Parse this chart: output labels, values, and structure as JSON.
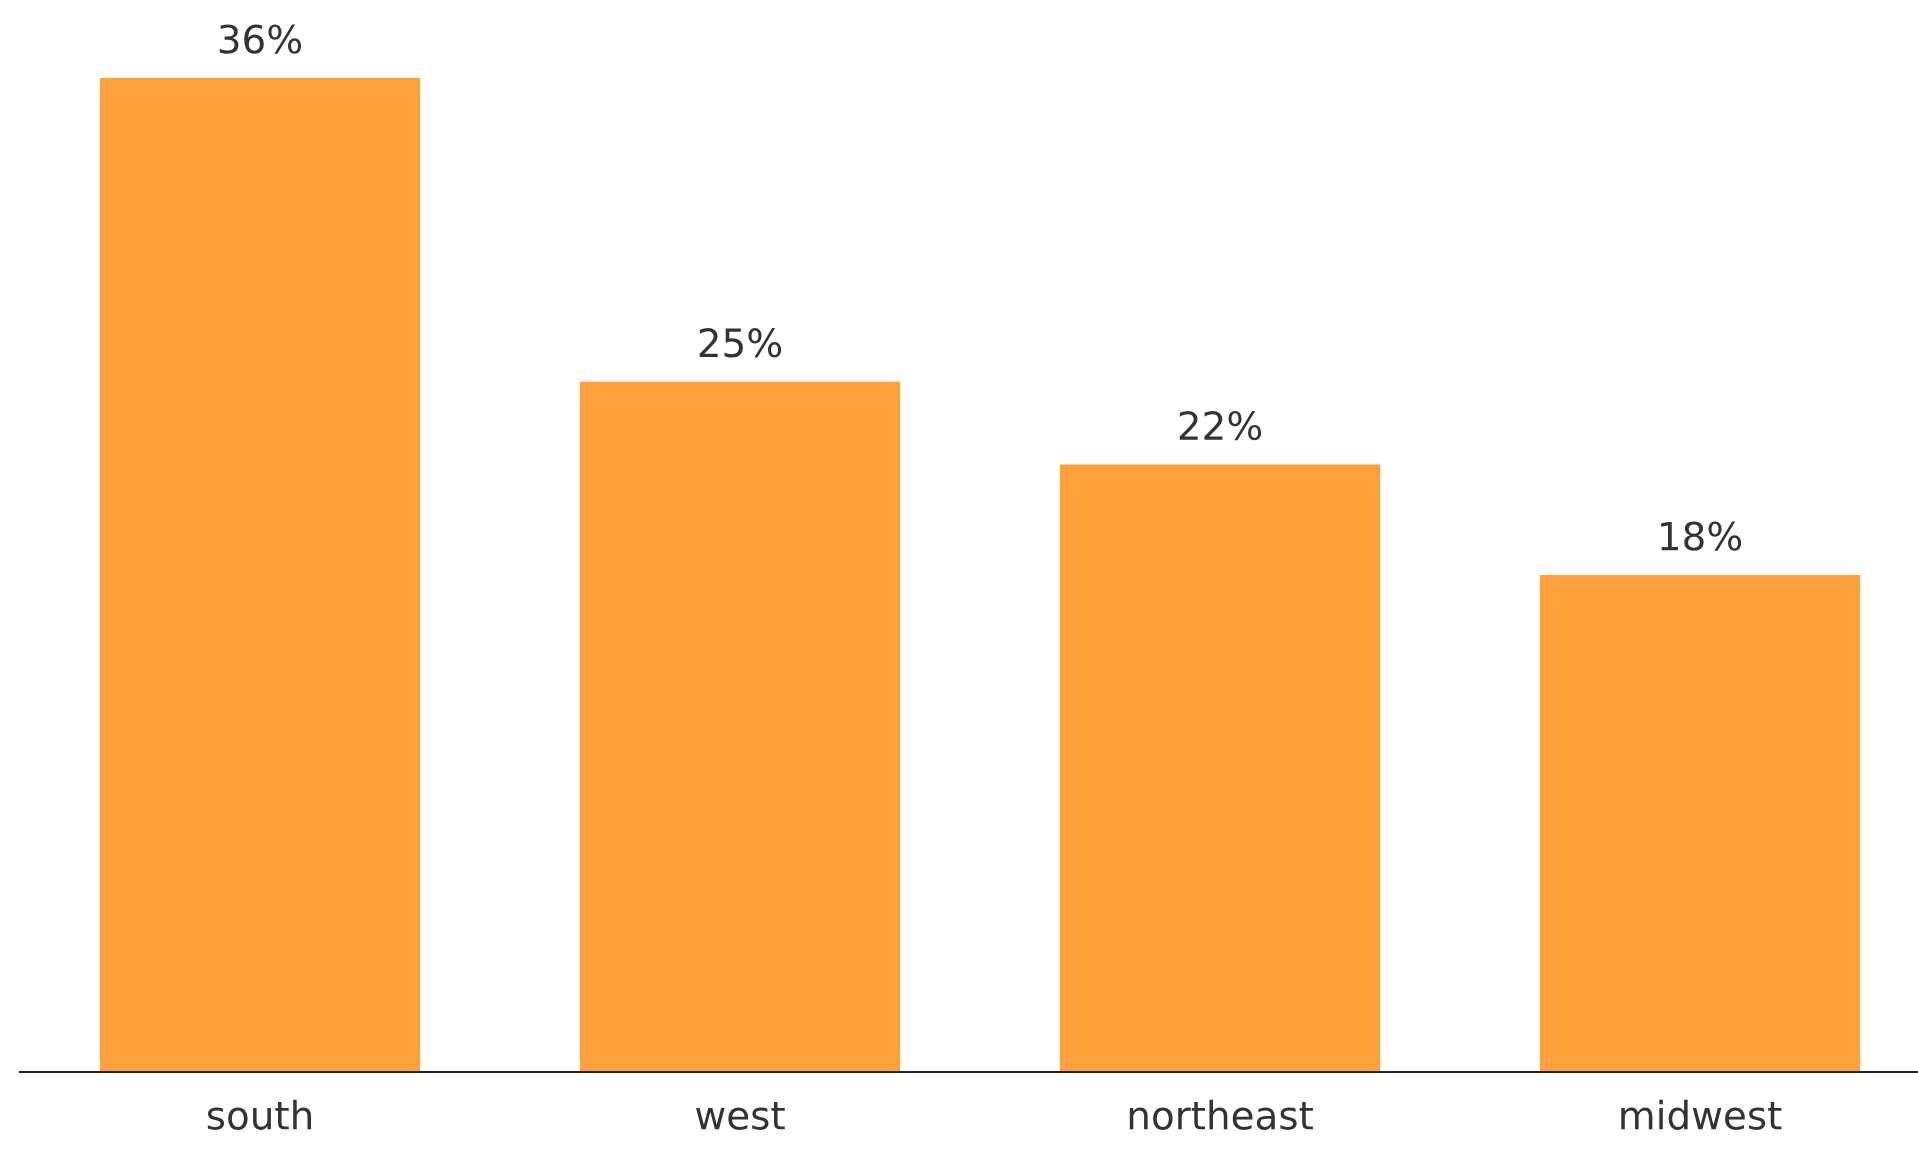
{
  "chart_data": {
    "type": "bar",
    "categories": [
      "south",
      "west",
      "northeast",
      "midwest"
    ],
    "values": [
      36,
      25,
      22,
      18
    ],
    "value_labels": [
      "36%",
      "25%",
      "22%",
      "18%"
    ],
    "color": "#ffa03a"
  }
}
